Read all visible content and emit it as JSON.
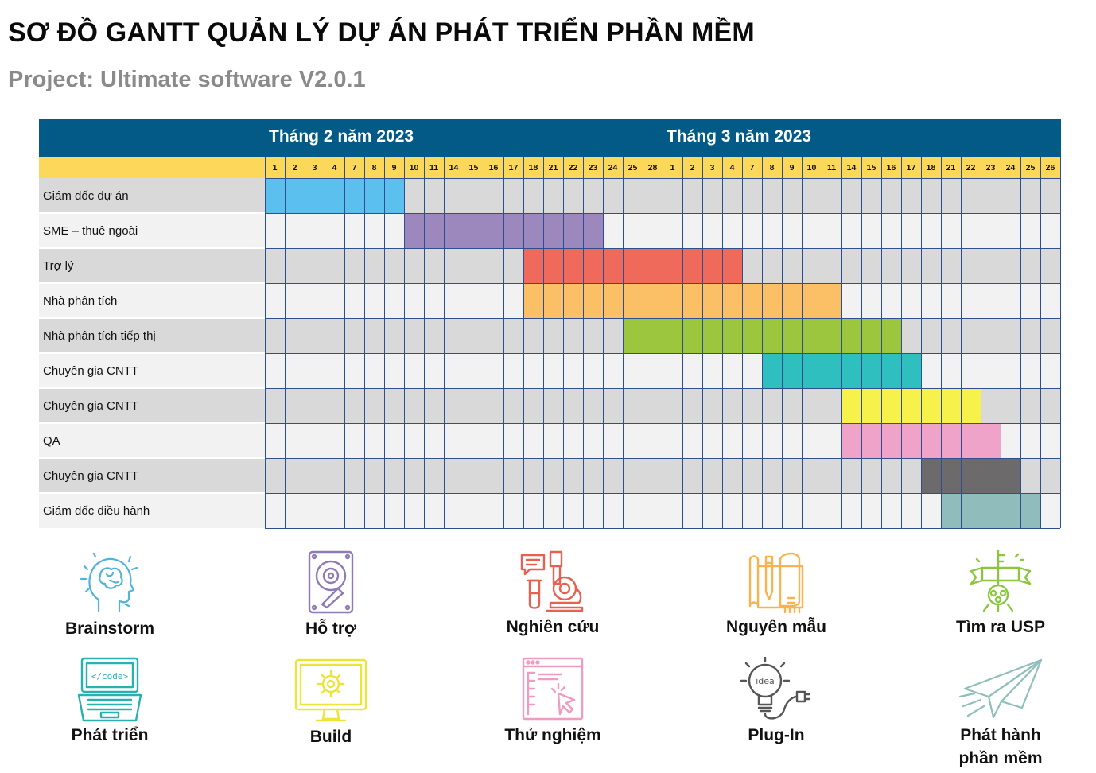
{
  "title": "SƠ ĐỒ GANTT QUẢN LÝ DỰ ÁN PHÁT TRIỂN PHẦN MỀM",
  "subtitle": "Project: Ultimate software V2.0.1",
  "chart_data": {
    "type": "gantt",
    "months": [
      "Tháng 2 năm 2023",
      "Tháng 3 năm 2023"
    ],
    "days": [
      "1",
      "2",
      "3",
      "4",
      "7",
      "8",
      "9",
      "10",
      "11",
      "14",
      "15",
      "16",
      "17",
      "18",
      "21",
      "22",
      "23",
      "24",
      "25",
      "28",
      "1",
      "2",
      "3",
      "4",
      "7",
      "8",
      "9",
      "10",
      "11",
      "14",
      "15",
      "16",
      "17",
      "18",
      "21",
      "22",
      "23",
      "24",
      "25",
      "26"
    ],
    "tasks": [
      {
        "name": "Giám đốc dự án",
        "start": 0,
        "end": 6,
        "color": "#5bc0ee"
      },
      {
        "name": "SME – thuê ngoài",
        "start": 7,
        "end": 16,
        "color": "#9c88bc"
      },
      {
        "name": "Trợ lý",
        "start": 13,
        "end": 23,
        "color": "#ef6a5a"
      },
      {
        "name": "Nhà phân tích",
        "start": 13,
        "end": 28,
        "color": "#fbbf66"
      },
      {
        "name": "Nhà phân tích tiếp thị",
        "start": 18,
        "end": 31,
        "color": "#9dc63f"
      },
      {
        "name": "Chuyên gia CNTT",
        "start": 25,
        "end": 32,
        "color": "#2fbfbf"
      },
      {
        "name": "Chuyên gia CNTT",
        "start": 29,
        "end": 35,
        "color": "#f7f24b"
      },
      {
        "name": "QA",
        "start": 29,
        "end": 36,
        "color": "#f0a3c8"
      },
      {
        "name": "Chuyên gia CNTT",
        "start": 33,
        "end": 37,
        "color": "#6d6a6b"
      },
      {
        "name": "Giám đốc điều hành",
        "start": 34,
        "end": 38,
        "color": "#90bcbb"
      }
    ]
  },
  "icons": [
    {
      "label": "Brainstorm",
      "icon": "brain-head-icon",
      "color": "#4fb3dc"
    },
    {
      "label": "Hỗ trợ",
      "icon": "hard-drive-icon",
      "color": "#8f7bb5"
    },
    {
      "label": "Nghiên cứu",
      "icon": "microscope-icon",
      "color": "#e8604f"
    },
    {
      "label": "Nguyên mẫu",
      "icon": "blueprint-icon",
      "color": "#f8b34f"
    },
    {
      "label": "Tìm ra USP",
      "icon": "key-banner-icon",
      "color": "#8cc63f"
    },
    {
      "label": "Phát triển",
      "icon": "laptop-code-icon",
      "color": "#2bb0b0"
    },
    {
      "label": "Build",
      "icon": "monitor-gear-icon",
      "color": "#ece43a"
    },
    {
      "label": "Thử nghiệm",
      "icon": "browser-click-icon",
      "color": "#ef9bc3"
    },
    {
      "label": "Plug-In",
      "icon": "bulb-plug-icon",
      "color": "#555555"
    },
    {
      "label": "Phát hành\nphần mềm",
      "icon": "paper-plane-icon",
      "color": "#8fbfba"
    }
  ],
  "code_tag": "</code>",
  "idea_text": "idea"
}
